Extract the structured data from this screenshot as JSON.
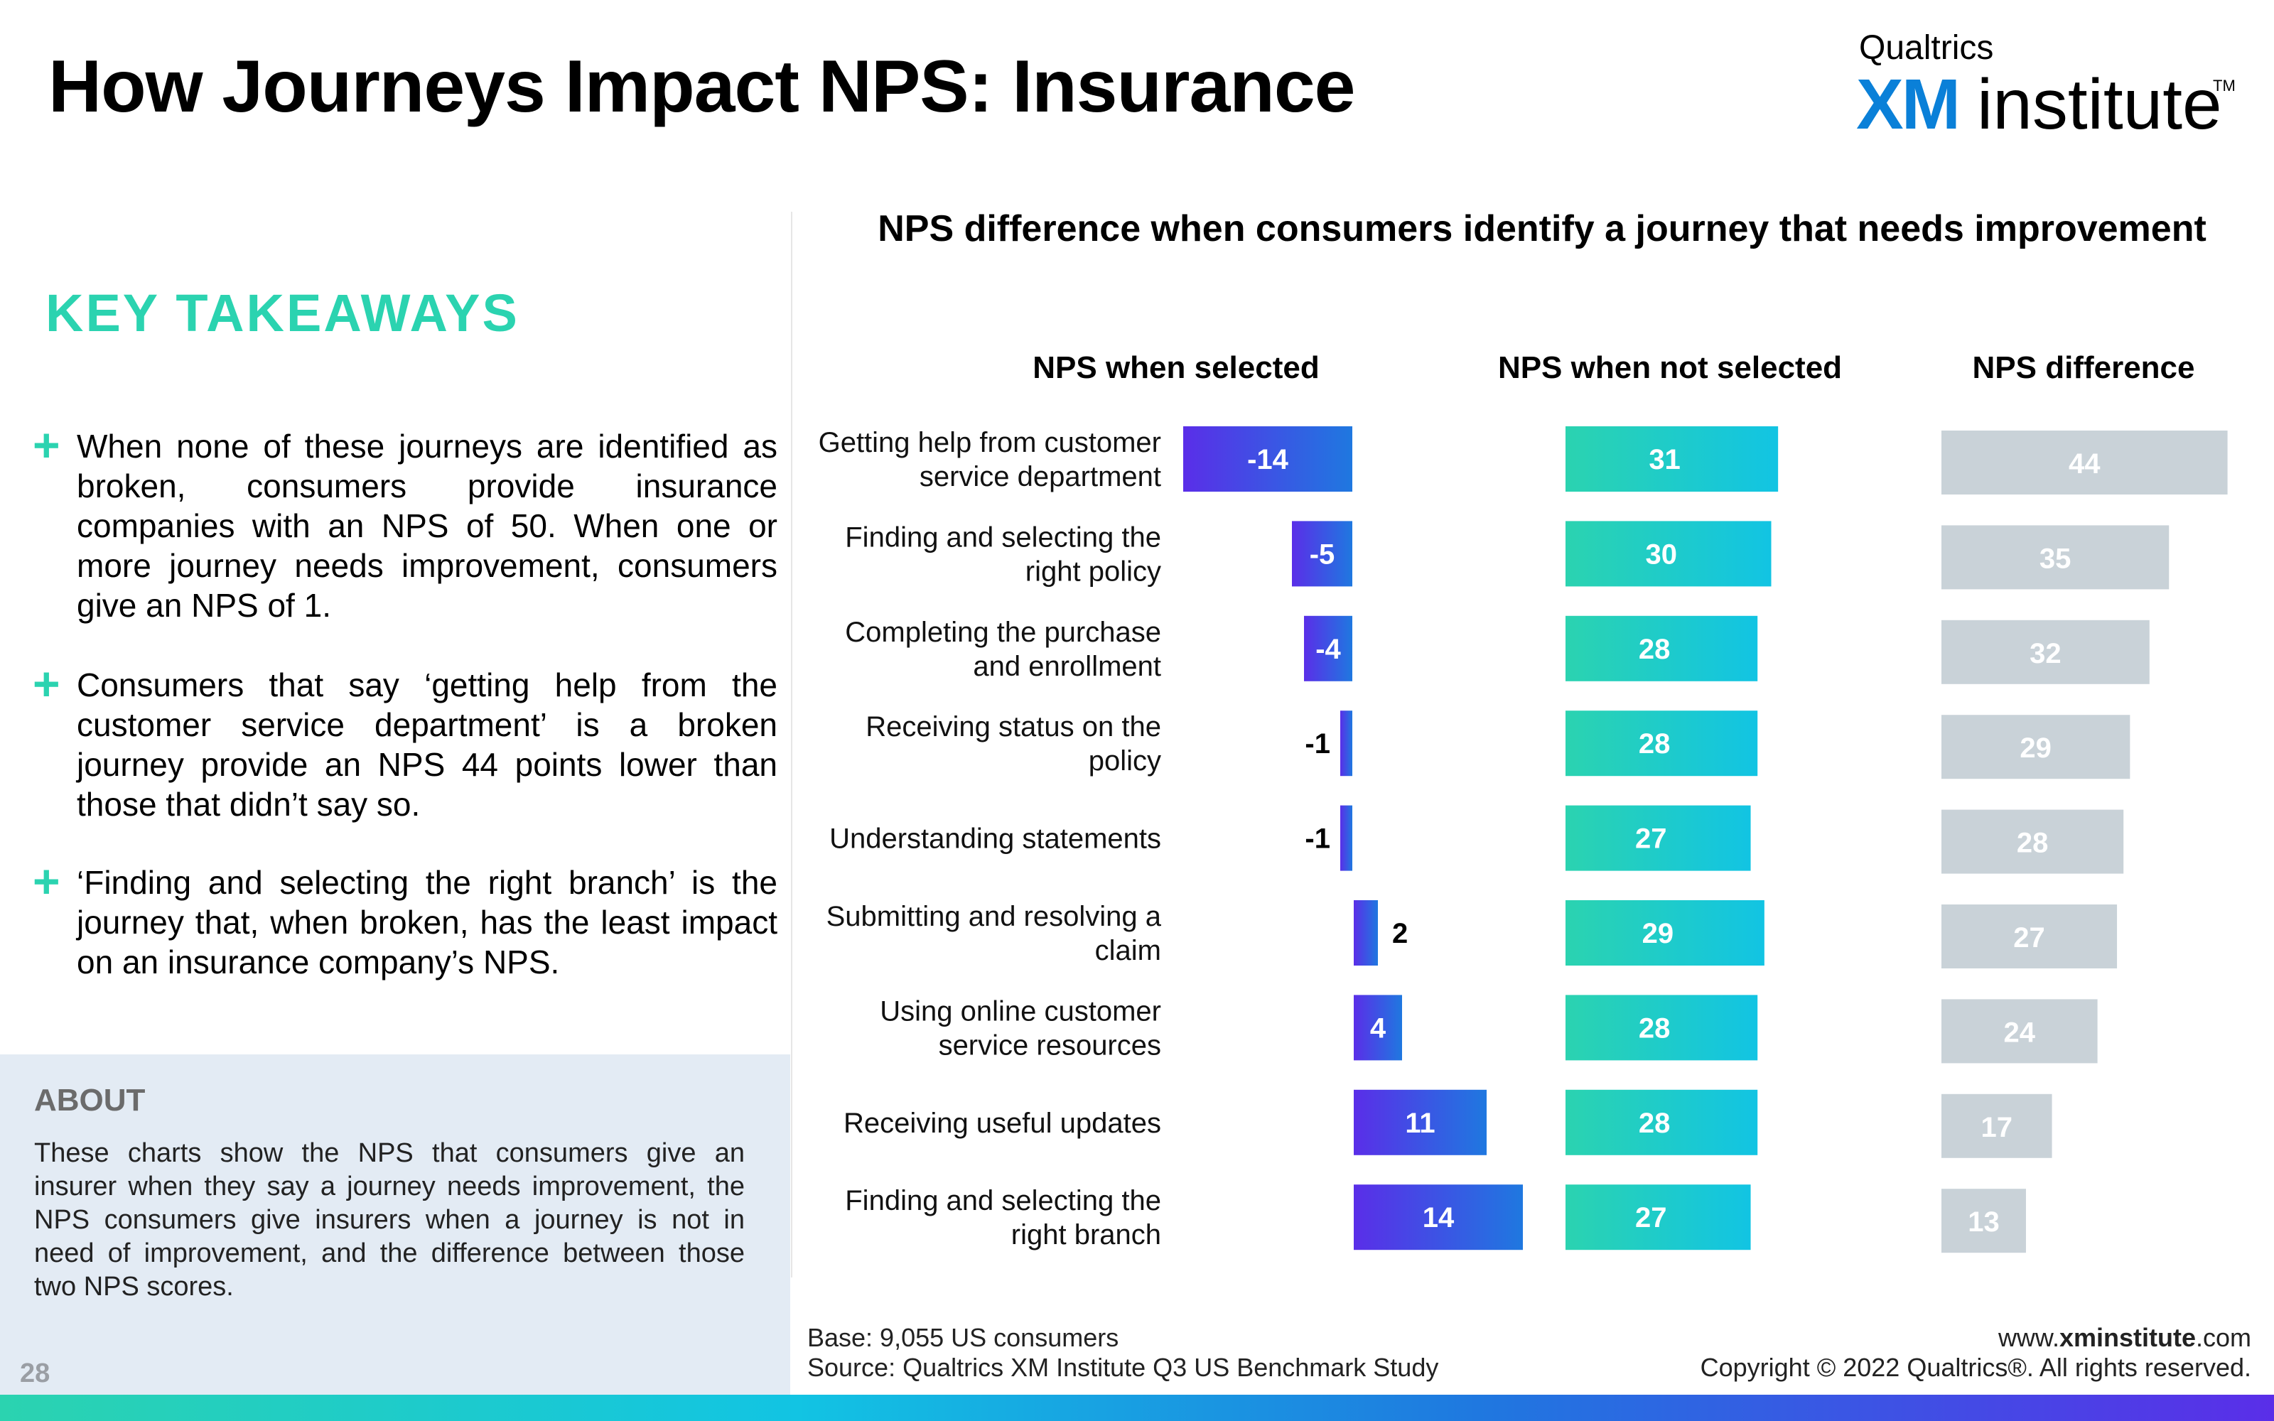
{
  "header": {
    "title": "How Journeys Impact NPS: Insurance",
    "logo_top": "Qualtrics",
    "logo_xm": "XM",
    "logo_institute": "institute",
    "logo_tm": "TM"
  },
  "takeaways": {
    "heading": "KEY TAKEAWAYS",
    "bullets": [
      "When none of these journeys are identified as broken, consumers provide insurance companies with an NPS of 50. When one or more journey needs improvement, consumers give an NPS of 1.",
      "Consumers that say ‘getting help from the customer service department’ is a broken journey provide an NPS 44 points lower than those that didn’t say so.",
      "‘Finding and selecting the right branch’ is the journey that, when broken, has the least impact on an insurance company’s NPS."
    ]
  },
  "about": {
    "heading": "ABOUT",
    "text": "These charts show the NPS that consumers give an insurer when they say a journey needs improvement, the NPS consumers give insurers when a journey is not in need of improvement, and the difference between those two NPS scores."
  },
  "footer": {
    "page_number": "28",
    "base": "Base: 9,055 US consumers",
    "source": "Source: Qualtrics XM Institute Q3 US Benchmark Study",
    "website_prefix": "www.",
    "website_bold": "xminstitute",
    "website_suffix": ".com",
    "copyright": "Copyright © 2022 Qualtrics®. All rights reserved."
  },
  "colors": {
    "accent_teal": "#2bd3b0",
    "selected_gradient": [
      "#5a2ee8",
      "#1f78e0"
    ],
    "not_selected_gradient": [
      "#2bd3b0",
      "#12c4e3"
    ],
    "difference_bar": "#c9d2d8"
  },
  "chart_data": {
    "type": "bar",
    "orientation": "horizontal",
    "title": "NPS difference when consumers identify a journey that needs improvement",
    "categories": [
      [
        "Getting help from customer",
        "service department"
      ],
      [
        "Finding and selecting the",
        "right policy"
      ],
      [
        "Completing the purchase",
        "and enrollment"
      ],
      [
        "Receiving status on the",
        "policy"
      ],
      [
        "Understanding statements"
      ],
      [
        "Submitting and resolving a",
        "claim"
      ],
      [
        "Using online customer",
        "service resources"
      ],
      [
        "Receiving useful updates"
      ],
      [
        "Finding and selecting the",
        "right branch"
      ]
    ],
    "series": [
      {
        "name": "NPS when selected",
        "values": [
          -14,
          -5,
          -4,
          -1,
          -1,
          2,
          4,
          11,
          14
        ]
      },
      {
        "name": "NPS when not selected",
        "values": [
          31,
          30,
          28,
          28,
          27,
          29,
          28,
          28,
          27
        ]
      },
      {
        "name": "NPS difference",
        "values": [
          44,
          35,
          32,
          29,
          28,
          27,
          24,
          17,
          13
        ]
      }
    ]
  }
}
